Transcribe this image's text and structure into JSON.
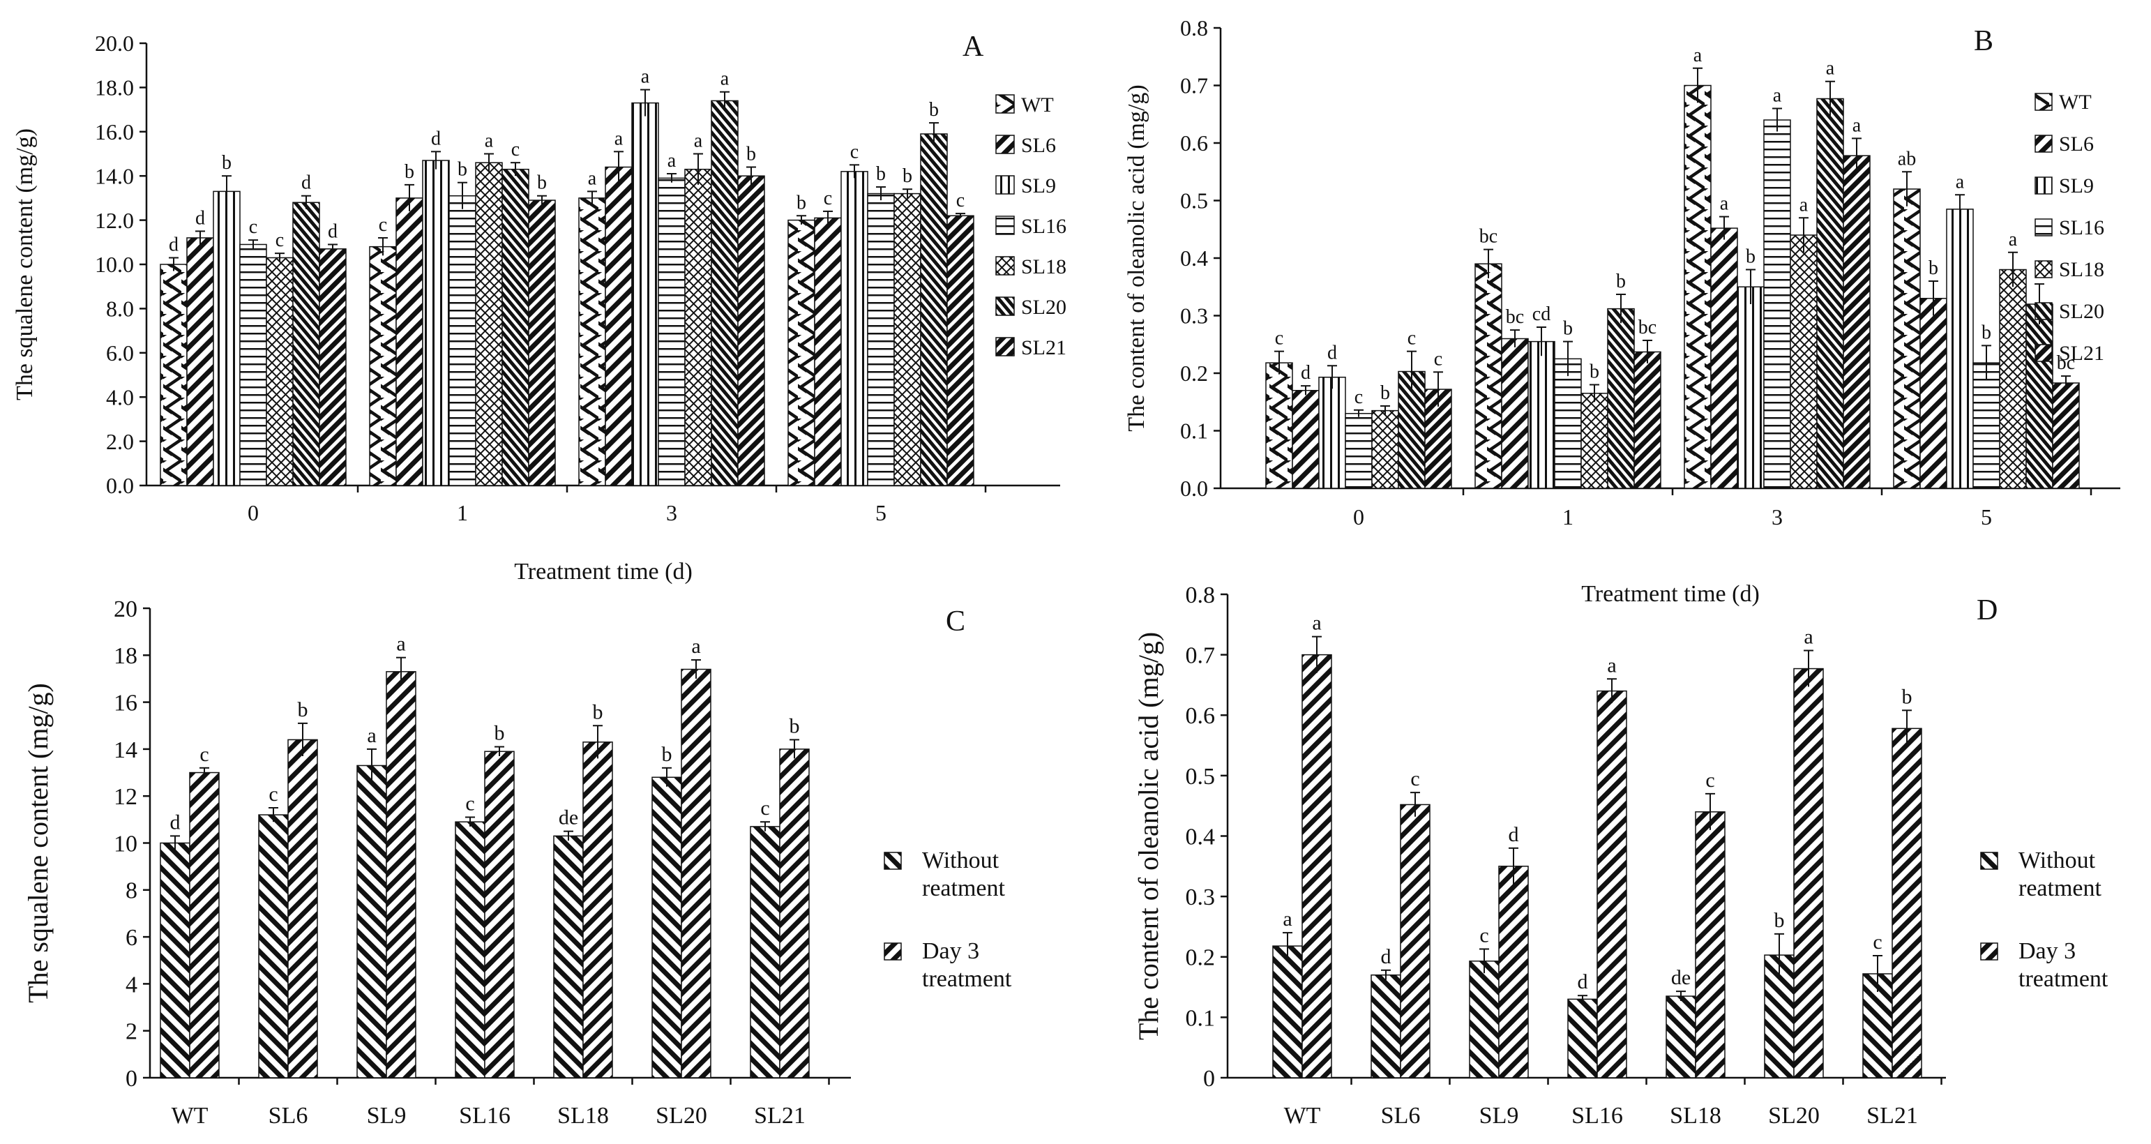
{
  "chart_data": [
    {
      "panel": "A",
      "type": "bar",
      "ylabel": "The squalene content (mg/g)",
      "xlabel": "Treatment time (d)",
      "ylim": [
        0,
        20
      ],
      "y_ticks": [
        "0.0",
        "2.0",
        "4.0",
        "6.0",
        "8.0",
        "10.0",
        "12.0",
        "14.0",
        "16.0",
        "18.0",
        "20.0"
      ],
      "categories": [
        "0",
        "1",
        "3",
        "5"
      ],
      "series": [
        {
          "name": "WT",
          "pattern": "chev-l",
          "values": [
            10.0,
            10.8,
            13.0,
            12.0
          ],
          "errors": [
            0.3,
            0.4,
            0.3,
            0.2
          ],
          "letters": [
            "d",
            "c",
            "a",
            "b"
          ]
        },
        {
          "name": "SL6",
          "pattern": "diag-r",
          "values": [
            11.2,
            13.0,
            14.4,
            12.1
          ],
          "errors": [
            0.3,
            0.6,
            0.7,
            0.3
          ],
          "letters": [
            "d",
            "b",
            "a",
            "c"
          ]
        },
        {
          "name": "SL9",
          "pattern": "vert",
          "values": [
            13.3,
            14.7,
            17.3,
            14.2
          ],
          "errors": [
            0.7,
            0.4,
            0.6,
            0.3
          ],
          "letters": [
            "b",
            "d",
            "a",
            "c"
          ]
        },
        {
          "name": "SL16",
          "pattern": "horiz",
          "values": [
            10.9,
            13.1,
            13.9,
            13.2
          ],
          "errors": [
            0.2,
            0.6,
            0.2,
            0.3
          ],
          "letters": [
            "c",
            "b",
            "a",
            "b"
          ]
        },
        {
          "name": "SL18",
          "pattern": "cross",
          "values": [
            10.3,
            14.6,
            14.3,
            13.2
          ],
          "errors": [
            0.2,
            0.4,
            0.7,
            0.2
          ],
          "letters": [
            "c",
            "a",
            "a",
            "b"
          ]
        },
        {
          "name": "SL20",
          "pattern": "dense",
          "values": [
            12.8,
            14.3,
            17.4,
            15.9
          ],
          "errors": [
            0.3,
            0.3,
            0.4,
            0.5
          ],
          "letters": [
            "d",
            "c",
            "a",
            "b"
          ]
        },
        {
          "name": "SL21",
          "pattern": "diag-b",
          "values": [
            10.7,
            12.9,
            14.0,
            12.2
          ],
          "errors": [
            0.2,
            0.2,
            0.4,
            0.1
          ],
          "letters": [
            "d",
            "b",
            "b",
            "c"
          ]
        }
      ],
      "panel_label": "A"
    },
    {
      "panel": "B",
      "type": "bar",
      "ylabel": "The content of oleanolic acid (mg/g)",
      "xlabel": "Treatment time (d)",
      "ylim": [
        0,
        0.8
      ],
      "y_ticks": [
        "0.0",
        "0.1",
        "0.2",
        "0.3",
        "0.4",
        "0.5",
        "0.6",
        "0.7",
        "0.8"
      ],
      "categories": [
        "0",
        "1",
        "3",
        "5"
      ],
      "series": [
        {
          "name": "WT",
          "pattern": "chev-l",
          "values": [
            0.218,
            0.39,
            0.7,
            0.52
          ],
          "errors": [
            0.02,
            0.025,
            0.03,
            0.03
          ],
          "letters": [
            "c",
            "bc",
            "a",
            "ab"
          ]
        },
        {
          "name": "SL6",
          "pattern": "diag-r",
          "values": [
            0.17,
            0.26,
            0.452,
            0.33
          ],
          "errors": [
            0.008,
            0.015,
            0.02,
            0.03
          ],
          "letters": [
            "d",
            "bc",
            "a",
            "b"
          ]
        },
        {
          "name": "SL9",
          "pattern": "vert",
          "values": [
            0.193,
            0.255,
            0.35,
            0.485
          ],
          "errors": [
            0.02,
            0.025,
            0.03,
            0.025
          ],
          "letters": [
            "d",
            "cd",
            "b",
            "a"
          ]
        },
        {
          "name": "SL16",
          "pattern": "horiz",
          "values": [
            0.13,
            0.225,
            0.64,
            0.218
          ],
          "errors": [
            0.006,
            0.03,
            0.02,
            0.03
          ],
          "letters": [
            "c",
            "b",
            "a",
            "b"
          ]
        },
        {
          "name": "SL18",
          "pattern": "cross",
          "values": [
            0.135,
            0.165,
            0.44,
            0.38
          ],
          "errors": [
            0.008,
            0.015,
            0.03,
            0.03
          ],
          "letters": [
            "b",
            "b",
            "a",
            "a"
          ]
        },
        {
          "name": "SL20",
          "pattern": "dense",
          "values": [
            0.203,
            0.312,
            0.677,
            0.32
          ],
          "errors": [
            0.035,
            0.025,
            0.03,
            0.035
          ],
          "letters": [
            "c",
            "b",
            "a",
            "b"
          ]
        },
        {
          "name": "SL21",
          "pattern": "diag-b",
          "values": [
            0.172,
            0.237,
            0.578,
            0.183
          ],
          "errors": [
            0.03,
            0.02,
            0.03,
            0.012
          ],
          "letters": [
            "c",
            "bc",
            "a",
            "bc"
          ]
        }
      ],
      "panel_label": "B"
    },
    {
      "panel": "C",
      "type": "bar",
      "ylabel": "The squalene content (mg/g)",
      "xlabel": "",
      "ylim": [
        0,
        20
      ],
      "y_ticks": [
        "0",
        "2",
        "4",
        "6",
        "8",
        "10",
        "12",
        "14",
        "16",
        "18",
        "20"
      ],
      "categories": [
        "WT",
        "SL6",
        "SL9",
        "SL16",
        "SL18",
        "SL20",
        "SL21"
      ],
      "series": [
        {
          "name": "Without reatment",
          "pattern": "diag-l",
          "values": [
            10.0,
            11.2,
            13.3,
            10.9,
            10.3,
            12.8,
            10.7
          ],
          "errors": [
            0.3,
            0.3,
            0.7,
            0.2,
            0.2,
            0.4,
            0.2
          ],
          "letters": [
            "d",
            "c",
            "a",
            "c",
            "de",
            "b",
            "c"
          ]
        },
        {
          "name": "Day 3 treatment",
          "pattern": "diag-r",
          "values": [
            13.0,
            14.4,
            17.3,
            13.9,
            14.3,
            17.4,
            14.0
          ],
          "errors": [
            0.2,
            0.7,
            0.6,
            0.2,
            0.7,
            0.4,
            0.4
          ],
          "letters": [
            "c",
            "b",
            "a",
            "b",
            "b",
            "a",
            "b"
          ]
        }
      ],
      "panel_label": "C"
    },
    {
      "panel": "D",
      "type": "bar",
      "ylabel": "The content of oleanolic acid (mg/g)",
      "xlabel": "",
      "ylim": [
        0,
        0.8
      ],
      "y_ticks": [
        "0",
        "0.1",
        "0.2",
        "0.3",
        "0.4",
        "0.5",
        "0.6",
        "0.7",
        "0.8"
      ],
      "categories": [
        "WT",
        "SL6",
        "SL9",
        "SL16",
        "SL18",
        "SL20",
        "SL21"
      ],
      "series": [
        {
          "name": "Without reatment",
          "pattern": "diag-l",
          "values": [
            0.218,
            0.17,
            0.193,
            0.13,
            0.135,
            0.203,
            0.172
          ],
          "errors": [
            0.022,
            0.008,
            0.02,
            0.006,
            0.008,
            0.035,
            0.03
          ],
          "letters": [
            "a",
            "d",
            "c",
            "d",
            "de",
            "b",
            "c"
          ]
        },
        {
          "name": "Day 3 treatment",
          "pattern": "diag-r",
          "values": [
            0.7,
            0.452,
            0.35,
            0.64,
            0.44,
            0.677,
            0.578
          ],
          "errors": [
            0.03,
            0.02,
            0.03,
            0.02,
            0.03,
            0.03,
            0.03
          ],
          "letters": [
            "a",
            "c",
            "d",
            "a",
            "c",
            "a",
            "b"
          ]
        }
      ],
      "panel_label": "D"
    }
  ]
}
